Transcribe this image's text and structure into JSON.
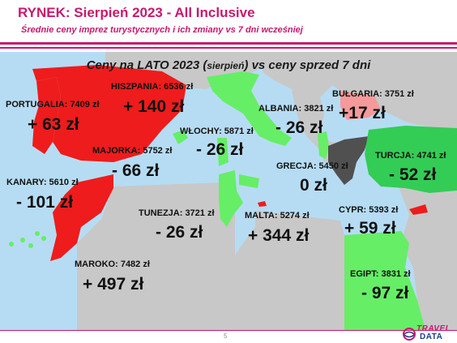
{
  "header": {
    "title": "RYNEK: Sierpień 2023 - All Inclusive",
    "subtitle": "Średnie ceny imprez turystycznych i ich zmiany vs 7 dni wcześniej"
  },
  "map": {
    "title_main": "Ceny na LATO 2023 (",
    "title_small": "sierpień",
    "title_end": ") vs ceny sprzed 7 dni"
  },
  "destinations": [
    {
      "id": "portugalia",
      "label": "PORTUGALIA: 7409 zł",
      "change": "+ 63 zł"
    },
    {
      "id": "hiszpania",
      "label": "HISZPANIA: 6536 zł",
      "change": "+ 140 zł"
    },
    {
      "id": "majorka",
      "label": "MAJORKA: 5752 zł",
      "change": "- 66 zł"
    },
    {
      "id": "kanary",
      "label": "KANARY: 5610 zł",
      "change": "- 101 zł"
    },
    {
      "id": "maroko",
      "label": "MAROKO: 7482 zł",
      "change": "+ 497 zł"
    },
    {
      "id": "wlochy",
      "label": "WŁOCHY: 5871 zł",
      "change": "- 26 zł"
    },
    {
      "id": "albania",
      "label": "ALBANIA: 3821 zł",
      "change": "- 26 zł"
    },
    {
      "id": "bulgaria",
      "label": "BUŁGARIA: 3751 zł",
      "change": "+17 zł"
    },
    {
      "id": "turcja",
      "label": "TURCJA: 4741 zł",
      "change": "- 52 zł"
    },
    {
      "id": "grecja",
      "label": "GRECJA: 5450 zł",
      "change": "0 zł"
    },
    {
      "id": "tunezja",
      "label": "TUNEZJA: 3721 zł",
      "change": "- 26 zł"
    },
    {
      "id": "malta",
      "label": "MALTA: 5274 zł",
      "change": "+ 344 zł"
    },
    {
      "id": "cypr",
      "label": "CYPR: 5393 zł",
      "change": "+ 59 zł"
    },
    {
      "id": "egipt",
      "label": "EGIPT: 3831 zł",
      "change": "- 97 zł"
    }
  ],
  "colors": {
    "accent": "#c8186e",
    "increase": "#ee1c1c",
    "decrease": "#66ee66",
    "increase_small": "#f59a9a",
    "decrease_strong": "#33cc55",
    "no_change": "#505050",
    "sea": "#b6dcf3",
    "neutral_land": "#c8c8c8"
  },
  "footer": {
    "page_number": "5",
    "logo_line1": "TRAVEL",
    "logo_line2": "DATA"
  }
}
